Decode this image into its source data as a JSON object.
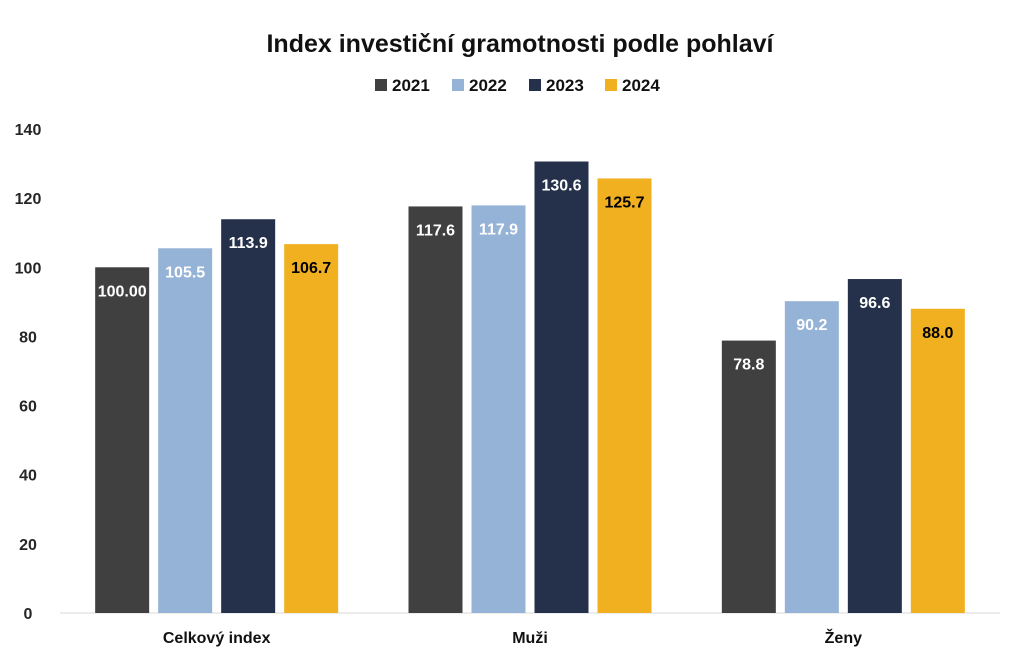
{
  "chart_data": {
    "type": "bar",
    "title": "Index investiční gramotnosti podle pohlaví",
    "xlabel": "",
    "ylabel": "",
    "ylim": [
      0,
      140
    ],
    "yticks": [
      "0",
      "20",
      "40",
      "60",
      "80",
      "100",
      "120",
      "140"
    ],
    "grid": false,
    "legend_position": "top",
    "categories": [
      "Celkový index",
      "Muži",
      "Ženy"
    ],
    "series": [
      {
        "name": "2021",
        "color": "#404040",
        "label_color": "#ffffff",
        "values": [
          100.0,
          117.6,
          78.8
        ],
        "labels": [
          "100.00",
          "117.6",
          "78.8"
        ]
      },
      {
        "name": "2022",
        "color": "#95b3d7",
        "label_color": "#ffffff",
        "values": [
          105.5,
          117.9,
          90.2
        ],
        "labels": [
          "105.5",
          "117.9",
          "90.2"
        ]
      },
      {
        "name": "2023",
        "color": "#25304b",
        "label_color": "#ffffff",
        "values": [
          113.9,
          130.6,
          96.6
        ],
        "labels": [
          "113.9",
          "130.6",
          "96.6"
        ]
      },
      {
        "name": "2024",
        "color": "#f0b020",
        "label_color": "#000000",
        "values": [
          106.7,
          125.7,
          88.0
        ],
        "labels": [
          "106.7",
          "125.7",
          "88.0"
        ]
      }
    ]
  }
}
